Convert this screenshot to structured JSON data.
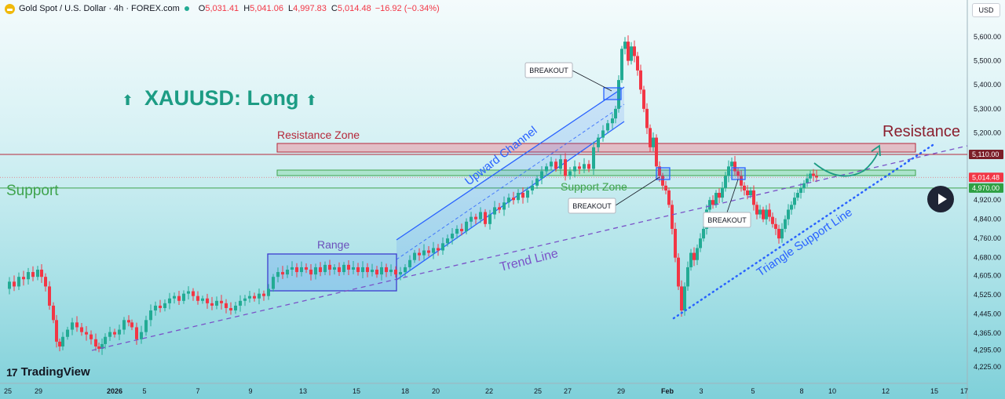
{
  "header": {
    "symbol": "Gold Spot / U.S. Dollar · 4h · FOREX.com",
    "open_key": "O",
    "open": "5,031.41",
    "high_key": "H",
    "high": "5,041.06",
    "low_key": "L",
    "low": "4,997.83",
    "close_key": "C",
    "close": "5,014.48",
    "change": "−16.92 (−0.34%)"
  },
  "currency_button": "USD",
  "branding": {
    "logo_mark": "17",
    "name": "TradingView"
  },
  "chart_data": {
    "type": "candlestick",
    "title": "XAUUSD: Long",
    "y_axis": {
      "range": [
        4200,
        5680
      ],
      "ticks": [
        "5,600.00",
        "5,500.00",
        "5,400.00",
        "5,300.00",
        "5,200.00",
        "4,920.00",
        "4,840.00",
        "4,760.00",
        "4,680.00",
        "4,605.00",
        "4,525.00",
        "4,445.00",
        "4,365.00",
        "4,295.00",
        "4,225.00"
      ],
      "tick_values": [
        5600,
        5500,
        5400,
        5300,
        5200,
        4920,
        4840,
        4760,
        4680,
        4605,
        4525,
        4445,
        4365,
        4295,
        4225
      ],
      "price_labels": [
        {
          "text": "5,110.00",
          "value": 5110,
          "color": "#7b1e28"
        },
        {
          "text": "5,014.48",
          "value": 5014.48,
          "color": "#f23645"
        },
        {
          "text": "4,970.00",
          "value": 4970,
          "color": "#2ea043"
        }
      ]
    },
    "x_axis": {
      "ticks": [
        "25",
        "29",
        "2026",
        "5",
        "7",
        "9",
        "13",
        "15",
        "18",
        "20",
        "22",
        "25",
        "27",
        "29",
        "Feb",
        "3",
        "5",
        "8",
        "10",
        "12",
        "15",
        "17"
      ],
      "bold": [
        "2026",
        "Feb"
      ]
    },
    "price_path": [
      [
        0,
        4550
      ],
      [
        6,
        4580
      ],
      [
        12,
        4560
      ],
      [
        18,
        4600
      ],
      [
        24,
        4590
      ],
      [
        30,
        4620
      ],
      [
        36,
        4600
      ],
      [
        42,
        4630
      ],
      [
        47,
        4600
      ],
      [
        52,
        4560
      ],
      [
        57,
        4480
      ],
      [
        62,
        4420
      ],
      [
        66,
        4330
      ],
      [
        70,
        4310
      ],
      [
        74,
        4350
      ],
      [
        80,
        4380
      ],
      [
        86,
        4410
      ],
      [
        92,
        4390
      ],
      [
        98,
        4370
      ],
      [
        104,
        4360
      ],
      [
        110,
        4340
      ],
      [
        116,
        4310
      ],
      [
        120,
        4300
      ],
      [
        124,
        4320
      ],
      [
        128,
        4350
      ],
      [
        134,
        4370
      ],
      [
        140,
        4360
      ],
      [
        146,
        4380
      ],
      [
        152,
        4420
      ],
      [
        158,
        4410
      ],
      [
        162,
        4390
      ],
      [
        168,
        4340
      ],
      [
        174,
        4370
      ],
      [
        180,
        4420
      ],
      [
        186,
        4460
      ],
      [
        192,
        4480
      ],
      [
        198,
        4470
      ],
      [
        204,
        4490
      ],
      [
        210,
        4510
      ],
      [
        216,
        4520
      ],
      [
        222,
        4500
      ],
      [
        228,
        4530
      ],
      [
        234,
        4540
      ],
      [
        240,
        4520
      ],
      [
        246,
        4500
      ],
      [
        252,
        4510
      ],
      [
        258,
        4490
      ],
      [
        264,
        4480
      ],
      [
        270,
        4500
      ],
      [
        276,
        4490
      ],
      [
        282,
        4470
      ],
      [
        288,
        4460
      ],
      [
        294,
        4480
      ],
      [
        300,
        4500
      ],
      [
        306,
        4510
      ],
      [
        312,
        4520
      ],
      [
        318,
        4510
      ],
      [
        324,
        4530
      ],
      [
        330,
        4520
      ],
      [
        336,
        4550
      ],
      [
        342,
        4600
      ],
      [
        348,
        4620
      ],
      [
        354,
        4610
      ],
      [
        360,
        4630
      ],
      [
        366,
        4640
      ],
      [
        372,
        4620
      ],
      [
        378,
        4640
      ],
      [
        384,
        4630
      ],
      [
        390,
        4610
      ],
      [
        396,
        4640
      ],
      [
        402,
        4620
      ],
      [
        408,
        4650
      ],
      [
        414,
        4630
      ],
      [
        420,
        4640
      ],
      [
        426,
        4620
      ],
      [
        432,
        4650
      ],
      [
        438,
        4630
      ],
      [
        444,
        4640
      ],
      [
        450,
        4620
      ],
      [
        456,
        4640
      ],
      [
        462,
        4620
      ],
      [
        468,
        4630
      ],
      [
        474,
        4610
      ],
      [
        480,
        4640
      ],
      [
        486,
        4620
      ],
      [
        492,
        4630
      ],
      [
        498,
        4610
      ],
      [
        504,
        4620
      ],
      [
        510,
        4640
      ],
      [
        516,
        4670
      ],
      [
        522,
        4700
      ],
      [
        528,
        4690
      ],
      [
        534,
        4710
      ],
      [
        540,
        4700
      ],
      [
        546,
        4720
      ],
      [
        552,
        4710
      ],
      [
        558,
        4740
      ],
      [
        564,
        4760
      ],
      [
        570,
        4780
      ],
      [
        576,
        4800
      ],
      [
        582,
        4790
      ],
      [
        588,
        4830
      ],
      [
        594,
        4850
      ],
      [
        600,
        4840
      ],
      [
        606,
        4870
      ],
      [
        612,
        4820
      ],
      [
        618,
        4860
      ],
      [
        624,
        4890
      ],
      [
        630,
        4880
      ],
      [
        636,
        4910
      ],
      [
        642,
        4930
      ],
      [
        648,
        4920
      ],
      [
        654,
        4950
      ],
      [
        660,
        4930
      ],
      [
        666,
        4960
      ],
      [
        672,
        4980
      ],
      [
        678,
        5010
      ],
      [
        684,
        5040
      ],
      [
        690,
        5060
      ],
      [
        696,
        5080
      ],
      [
        702,
        5050
      ],
      [
        708,
        5090
      ],
      [
        714,
        5020
      ],
      [
        720,
        5040
      ],
      [
        726,
        5060
      ],
      [
        732,
        5050
      ],
      [
        738,
        5070
      ],
      [
        744,
        5050
      ],
      [
        750,
        5140
      ],
      [
        756,
        5180
      ],
      [
        762,
        5210
      ],
      [
        768,
        5240
      ],
      [
        774,
        5260
      ],
      [
        778,
        5300
      ],
      [
        782,
        5420
      ],
      [
        786,
        5550
      ],
      [
        790,
        5580
      ],
      [
        794,
        5500
      ],
      [
        798,
        5560
      ],
      [
        802,
        5520
      ],
      [
        806,
        5460
      ],
      [
        810,
        5380
      ],
      [
        814,
        5300
      ],
      [
        818,
        5220
      ],
      [
        822,
        5140
      ],
      [
        826,
        5180
      ],
      [
        830,
        5060
      ],
      [
        834,
        5020
      ],
      [
        838,
        4980
      ],
      [
        842,
        4960
      ],
      [
        846,
        4900
      ],
      [
        850,
        4800
      ],
      [
        854,
        4680
      ],
      [
        858,
        4560
      ],
      [
        862,
        4460
      ],
      [
        866,
        4560
      ],
      [
        870,
        4640
      ],
      [
        874,
        4700
      ],
      [
        878,
        4670
      ],
      [
        882,
        4720
      ],
      [
        886,
        4760
      ],
      [
        890,
        4800
      ],
      [
        894,
        4880
      ],
      [
        898,
        4920
      ],
      [
        902,
        4900
      ],
      [
        906,
        4950
      ],
      [
        910,
        4930
      ],
      [
        914,
        4970
      ],
      [
        918,
        5020
      ],
      [
        922,
        5060
      ],
      [
        926,
        5080
      ],
      [
        930,
        5040
      ],
      [
        934,
        5020
      ],
      [
        938,
        4980
      ],
      [
        942,
        4960
      ],
      [
        946,
        4940
      ],
      [
        950,
        4960
      ],
      [
        954,
        4900
      ],
      [
        958,
        4860
      ],
      [
        962,
        4880
      ],
      [
        966,
        4840
      ],
      [
        970,
        4880
      ],
      [
        974,
        4850
      ],
      [
        978,
        4820
      ],
      [
        982,
        4800
      ],
      [
        986,
        4760
      ],
      [
        990,
        4800
      ],
      [
        994,
        4840
      ],
      [
        998,
        4880
      ],
      [
        1002,
        4900
      ],
      [
        1006,
        4930
      ],
      [
        1010,
        4950
      ],
      [
        1014,
        4970
      ],
      [
        1018,
        4990
      ],
      [
        1022,
        5010
      ],
      [
        1026,
        5030
      ],
      [
        1030,
        5020
      ],
      [
        1034,
        5014
      ]
    ]
  },
  "annotations": {
    "title_arrow": "⬆",
    "title": "XAUUSD: Long",
    "resistance_zone_label": "Resistance Zone",
    "support_zone_label": "Support Zone",
    "support_label": "Support",
    "resistance_label": "Resistance",
    "range_label": "Range",
    "upward_channel_label": "Upward Channel",
    "trend_line_label": "Trend Line",
    "triangle_support_label": "Triangle Support Line",
    "breakout_labels": [
      "BREAKOUT",
      "BREAKOUT",
      "BREAKOUT"
    ]
  },
  "colors": {
    "up": "#22ab94",
    "down": "#f23645",
    "resistance": "#b5283a",
    "support": "#3fa34d",
    "title": "#1c9c84",
    "channel": "#2962ff",
    "trend": "#7a52c8",
    "triangle": "#2962ff",
    "range_label": "#6b4fbb",
    "breakout_box": "#2962ff"
  }
}
